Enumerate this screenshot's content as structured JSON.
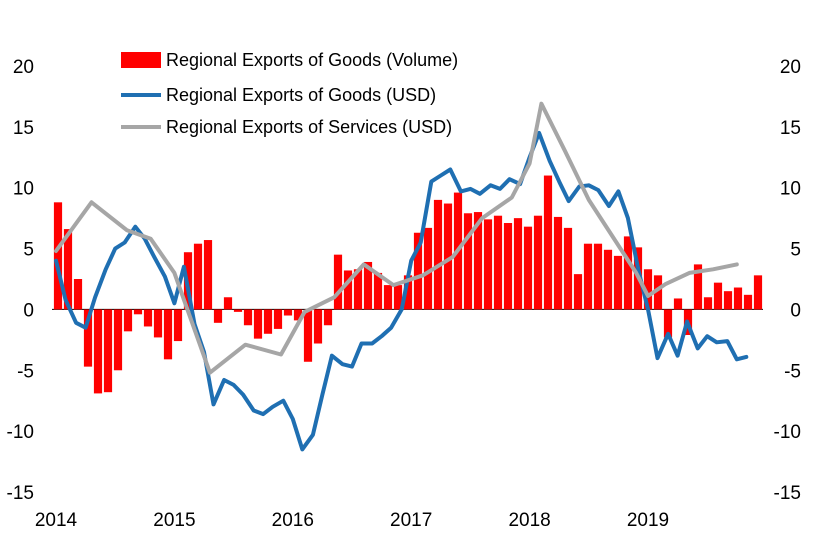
{
  "chart_data": {
    "type": "bar+line",
    "title": "",
    "xlabel": "",
    "ylabel": "",
    "ylim": [
      -15,
      20
    ],
    "y_ticks": [
      20,
      15,
      10,
      5,
      0,
      -5,
      -10,
      -15
    ],
    "y_tick_labels": [
      "20",
      "15",
      "10",
      "5",
      "0",
      "-5",
      "-10",
      "-15"
    ],
    "x_ticks": [
      "2014",
      "2015",
      "2016",
      "2017",
      "2018",
      "2019"
    ],
    "x_start": 2014.0,
    "x_end": 2019.92,
    "legend": [
      {
        "label": "Regional Exports of Goods (Volume)",
        "kind": "bar",
        "color": "#ff0000"
      },
      {
        "label": "Regional Exports of Goods (USD)",
        "kind": "line",
        "color": "#1f6fb2"
      },
      {
        "label": "Regional Exports of Services (USD)",
        "kind": "line",
        "color": "#a6a6a6"
      }
    ],
    "bars": {
      "name": "Regional Exports of Goods (Volume)",
      "color": "#ff0000",
      "values": [
        8.8,
        6.6,
        2.5,
        -4.7,
        -6.9,
        -6.8,
        -5.0,
        -1.8,
        -0.4,
        -1.4,
        -2.3,
        -4.1,
        -2.6,
        4.7,
        5.4,
        5.7,
        -1.1,
        1.0,
        -0.2,
        -1.3,
        -2.4,
        -2.0,
        -1.6,
        -0.5,
        -0.9,
        -4.3,
        -2.8,
        -1.3,
        4.5,
        3.2,
        3.3,
        3.9,
        3.0,
        2.0,
        2.0,
        2.8,
        6.3,
        6.7,
        9.0,
        8.7,
        9.6,
        7.9,
        8.0,
        7.4,
        7.7,
        7.1,
        7.5,
        6.8,
        7.7,
        11.0,
        7.6,
        6.7,
        2.9,
        5.4,
        5.4,
        4.9,
        4.4,
        6.0,
        5.1,
        3.3,
        2.8,
        -2.3,
        0.9,
        -2.1,
        3.7,
        1.0,
        2.2,
        1.5,
        1.8,
        1.2,
        2.8
      ]
    },
    "series": [
      {
        "name": "Regional Exports of Goods (USD)",
        "color": "#1f6fb2",
        "x": [
          2014.0,
          2014.08,
          2014.17,
          2014.25,
          2014.33,
          2014.42,
          2014.5,
          2014.58,
          2014.67,
          2014.75,
          2014.83,
          2014.92,
          2015.0,
          2015.08,
          2015.17,
          2015.25,
          2015.33,
          2015.42,
          2015.5,
          2015.58,
          2015.67,
          2015.75,
          2015.83,
          2015.92,
          2016.0,
          2016.08,
          2016.17,
          2016.25,
          2016.33,
          2016.42,
          2016.5,
          2016.58,
          2016.67,
          2016.75,
          2016.83,
          2016.92,
          2017.0,
          2017.08,
          2017.17,
          2017.25,
          2017.33,
          2017.42,
          2017.5,
          2017.58,
          2017.67,
          2017.75,
          2017.83,
          2017.92,
          2018.0,
          2018.08,
          2018.17,
          2018.25,
          2018.33,
          2018.42,
          2018.5,
          2018.58,
          2018.67,
          2018.75,
          2018.83,
          2018.92,
          2019.0,
          2019.08,
          2019.17,
          2019.25,
          2019.33,
          2019.42,
          2019.5,
          2019.58,
          2019.67,
          2019.75,
          2019.83
        ],
        "values": [
          4.0,
          0.8,
          -1.1,
          -1.5,
          1.0,
          3.3,
          5.0,
          5.5,
          6.8,
          5.8,
          4.3,
          2.7,
          0.5,
          3.5,
          -1.2,
          -3.5,
          -7.8,
          -5.8,
          -6.2,
          -7.0,
          -8.3,
          -8.6,
          -8.0,
          -7.5,
          -9.0,
          -11.5,
          -10.3,
          -7.0,
          -3.8,
          -4.5,
          -4.7,
          -2.8,
          -2.8,
          -2.2,
          -1.5,
          0.0,
          4.0,
          5.5,
          10.5,
          11.0,
          11.5,
          9.7,
          9.9,
          9.5,
          10.2,
          9.9,
          10.7,
          10.3,
          12.5,
          14.5,
          12.2,
          10.5,
          8.9,
          10.1,
          10.2,
          9.8,
          8.5,
          9.7,
          7.5,
          3.2,
          0.0,
          -4.0,
          -2.0,
          -3.8,
          -1.0,
          -3.2,
          -2.2,
          -2.7,
          -2.6,
          -4.1,
          -3.9
        ]
      },
      {
        "name": "Regional Exports of Services (USD)",
        "color": "#a6a6a6",
        "x": [
          2014.0,
          2014.3,
          2014.6,
          2014.8,
          2015.0,
          2015.3,
          2015.6,
          2015.9,
          2016.1,
          2016.35,
          2016.6,
          2016.85,
          2017.1,
          2017.35,
          2017.6,
          2017.85,
          2018.0,
          2018.1,
          2018.3,
          2018.5,
          2018.7,
          2018.9,
          2019.0,
          2019.15,
          2019.35,
          2019.55,
          2019.75
        ],
        "values": [
          4.8,
          8.8,
          6.5,
          5.8,
          3.0,
          -5.2,
          -2.9,
          -3.7,
          -0.2,
          1.0,
          3.7,
          2.0,
          2.8,
          4.3,
          7.5,
          9.2,
          12.0,
          16.9,
          13.0,
          9.0,
          6.0,
          3.0,
          1.1,
          2.1,
          3.0,
          3.3,
          3.7
        ]
      }
    ]
  }
}
